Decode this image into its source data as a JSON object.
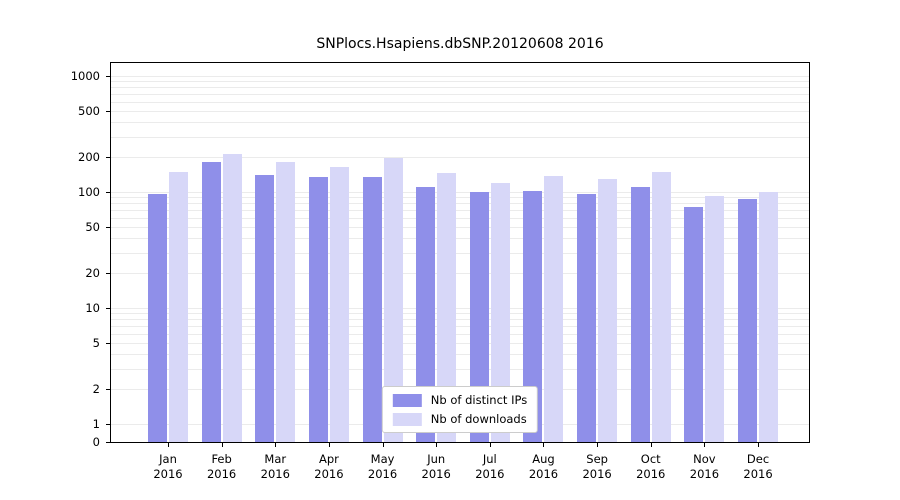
{
  "chart_data": {
    "type": "bar",
    "title": "SNPlocs.Hsapiens.dbSNP.20120608 2016",
    "categories": [
      "Jan 2016",
      "Feb 2016",
      "Mar 2016",
      "Apr 2016",
      "May 2016",
      "Jun 2016",
      "Jul 2016",
      "Aug 2016",
      "Sep 2016",
      "Oct 2016",
      "Nov 2016",
      "Dec 2016"
    ],
    "series": [
      {
        "name": "Nb of distinct IPs",
        "color": "#8f8fe9",
        "values": [
          96,
          180,
          140,
          135,
          135,
          110,
          101,
          102,
          96,
          110,
          75,
          87
        ]
      },
      {
        "name": "Nb of downloads",
        "color": "#d7d7f8",
        "values": [
          150,
          213,
          180,
          165,
          195,
          145,
          120,
          138,
          130,
          150,
          92,
          100
        ]
      }
    ],
    "yscale": "log-with-zero",
    "yticks": [
      0,
      1,
      2,
      5,
      10,
      20,
      50,
      100,
      200,
      500,
      1000
    ],
    "ylim": [
      0,
      1400
    ],
    "xlabel": "",
    "ylabel": "",
    "grid": true,
    "legend_position": "lower center",
    "colors": {
      "distinct_ips": "#8f8fe9",
      "downloads": "#d7d7f8",
      "gridline": "#ebebeb",
      "axis": "#000000"
    }
  }
}
